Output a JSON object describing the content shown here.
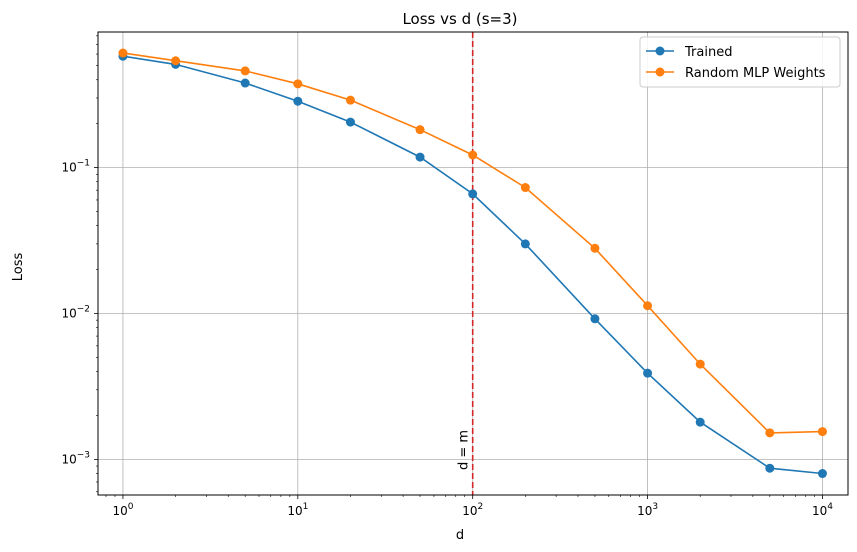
{
  "chart_data": {
    "type": "line",
    "title": "Loss vs d (s=3)",
    "xlabel": "d",
    "ylabel": "Loss",
    "xscale": "log",
    "yscale": "log",
    "xlim": [
      0.72,
      14000
    ],
    "ylim": [
      0.00057,
      0.85
    ],
    "grid": true,
    "legend_position": "top-right",
    "x": [
      1,
      2,
      5,
      10,
      20,
      50,
      100,
      200,
      500,
      1000,
      2000,
      5000,
      10000
    ],
    "series": [
      {
        "name": "Trained",
        "color": "#1f77b4",
        "values": [
          0.58,
          0.51,
          0.38,
          0.285,
          0.205,
          0.118,
          0.066,
          0.03,
          0.0092,
          0.0039,
          0.0018,
          0.00087,
          0.0008
        ]
      },
      {
        "name": "Random MLP Weights",
        "color": "#ff7f0e",
        "values": [
          0.61,
          0.54,
          0.46,
          0.375,
          0.29,
          0.182,
          0.122,
          0.073,
          0.028,
          0.0113,
          0.0045,
          0.00152,
          0.00155
        ]
      }
    ],
    "x_ticks": [
      {
        "value": 1,
        "base": "10",
        "exp": "0"
      },
      {
        "value": 10,
        "base": "10",
        "exp": "1"
      },
      {
        "value": 100,
        "base": "10",
        "exp": "2"
      },
      {
        "value": 1000,
        "base": "10",
        "exp": "3"
      },
      {
        "value": 10000,
        "base": "10",
        "exp": "4"
      }
    ],
    "y_ticks": [
      {
        "value": 0.001,
        "base": "10",
        "exp": "−3"
      },
      {
        "value": 0.01,
        "base": "10",
        "exp": "−2"
      },
      {
        "value": 0.1,
        "base": "10",
        "exp": "−1"
      }
    ],
    "vline": {
      "x": 100,
      "label": "d = m",
      "color": "#d62728"
    }
  }
}
